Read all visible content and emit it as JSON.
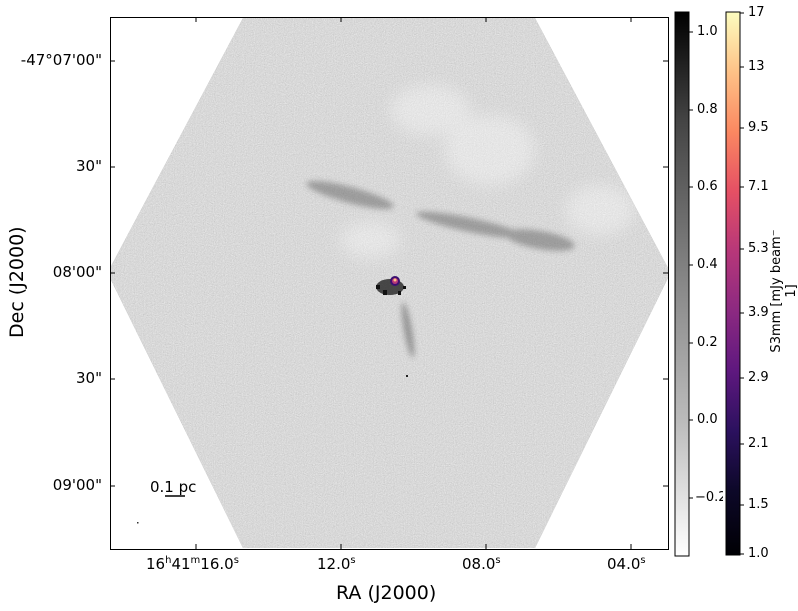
{
  "figure": {
    "x_axis_title": "RA (J2000)",
    "y_axis_title": "Dec (J2000)",
    "ra_ticks": [
      {
        "h": "16",
        "m": "41",
        "s": "16.0"
      },
      {
        "s": "12.0"
      },
      {
        "s": "08.0"
      },
      {
        "s": "04.0"
      }
    ],
    "dec_ticks": [
      "-47°07'00\"",
      "30\"",
      "08'00\"",
      "30\"",
      "09'00\""
    ],
    "scale_bar_label": "0.1 pc",
    "gray_colorbar": {
      "ticks": [
        "1.0",
        "0.8",
        "0.6",
        "0.4",
        "0.2",
        "0.0",
        "−0.2"
      ]
    },
    "color_colorbar": {
      "ticks": [
        "17",
        "13",
        "9.5",
        "7.1",
        "5.3",
        "3.9",
        "2.9",
        "2.1",
        "1.5",
        "1.0"
      ],
      "title": "S3mm [mJy beam⁻ 1]",
      "colormap": [
        "#fcfdbf",
        "#fec287",
        "#fb8861",
        "#e55064",
        "#b73779",
        "#8c2981",
        "#5f187f",
        "#2c115f",
        "#0d0829",
        "#000004"
      ]
    }
  }
}
